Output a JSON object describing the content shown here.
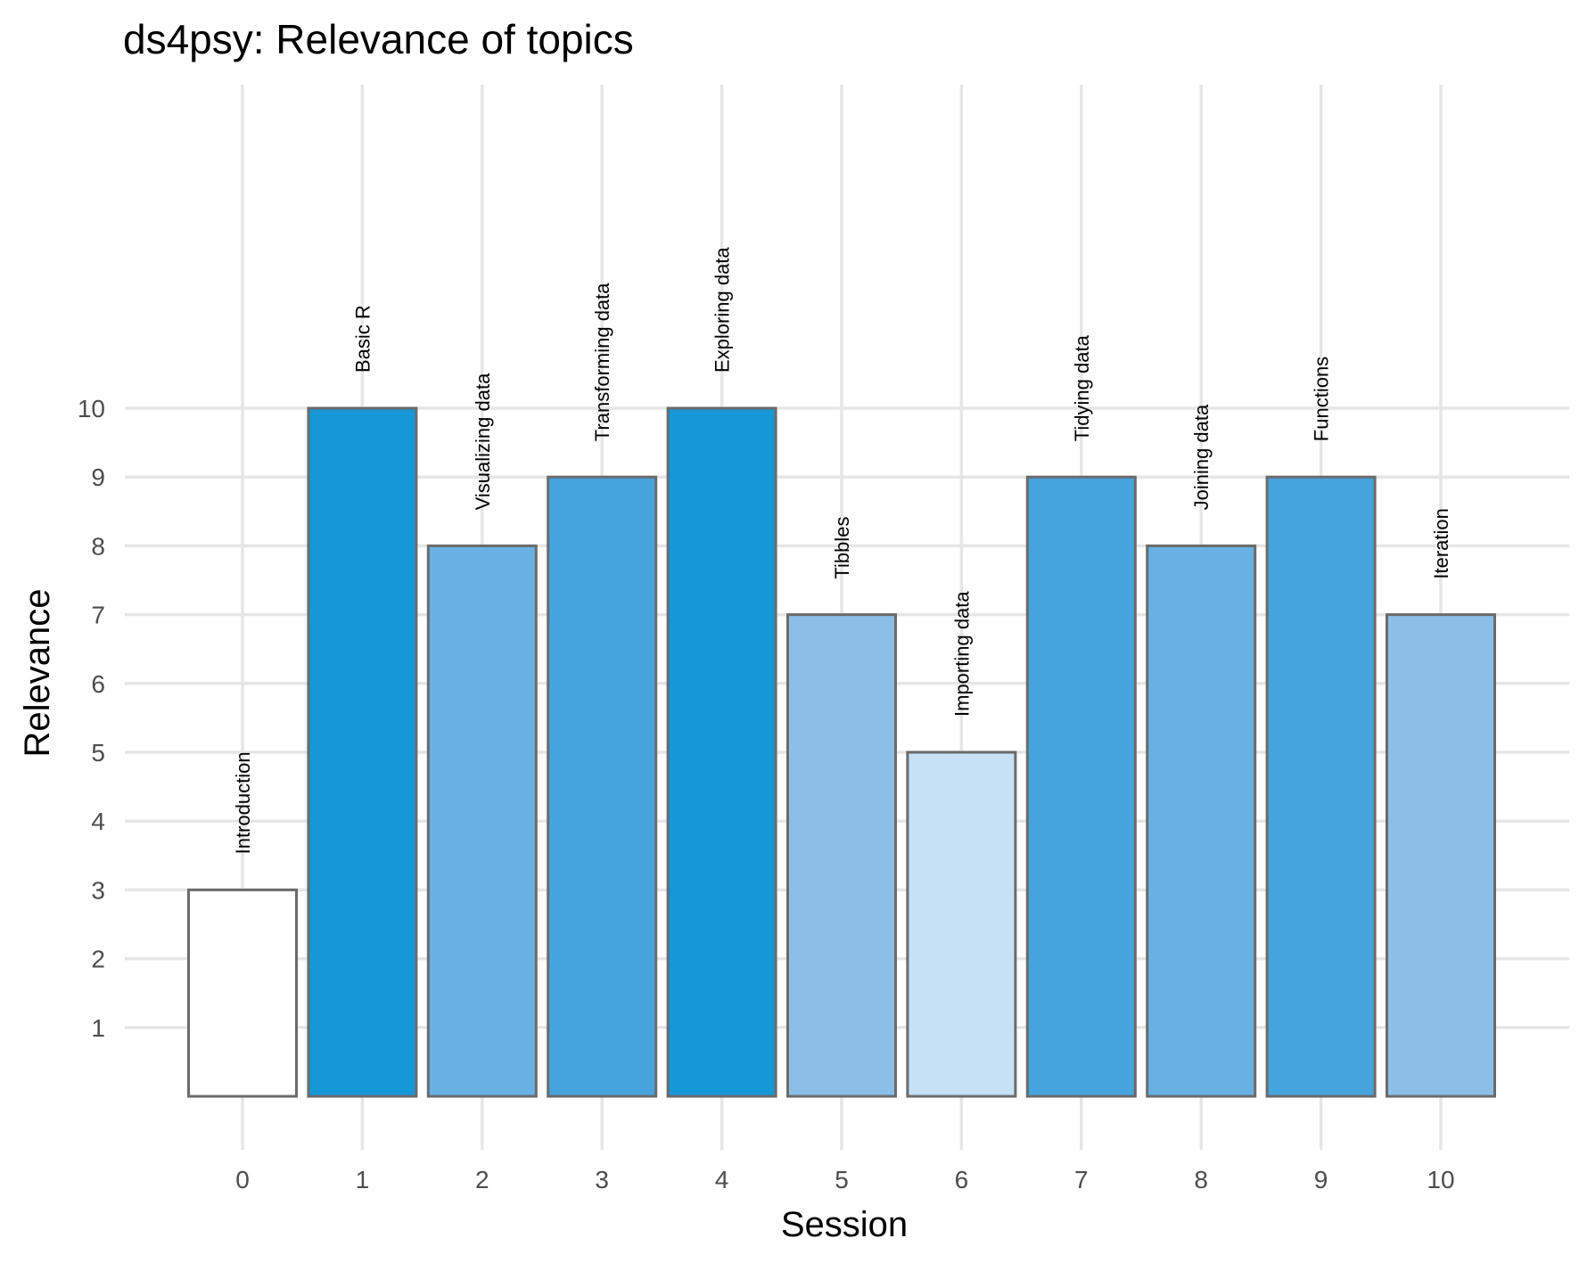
{
  "chart_data": {
    "type": "bar",
    "title": "ds4psy: Relevance of topics",
    "xlabel": "Session",
    "ylabel": "Relevance",
    "x": [
      0,
      1,
      2,
      3,
      4,
      5,
      6,
      7,
      8,
      9,
      10
    ],
    "x_tick_labels": [
      "0",
      "1",
      "2",
      "3",
      "4",
      "5",
      "6",
      "7",
      "8",
      "9",
      "10"
    ],
    "topics": [
      "Introduction",
      "Basic R",
      "Visualizing data",
      "Transforming data",
      "Exploring data",
      "Tibbles",
      "Importing data",
      "Tidying data",
      "Joining data",
      "Functions",
      "Iteration"
    ],
    "values": [
      3,
      10,
      8,
      9,
      10,
      7,
      5,
      9,
      8,
      9,
      7
    ],
    "y_ticks": [
      1,
      2,
      3,
      4,
      5,
      6,
      7,
      8,
      9,
      10
    ],
    "ylim": [
      0,
      10
    ],
    "xlim": [
      0,
      10
    ],
    "grid": true,
    "legend": "none",
    "fill_scale": {
      "3": "#ffffff",
      "5": "#c6e0f5",
      "7": "#8bbfe7",
      "8": "#68b1e3",
      "9": "#45a3dd",
      "10": "#1697d7"
    },
    "bar_outline_color": "#6b6b6b",
    "grid_color": "#e6e6e6"
  }
}
